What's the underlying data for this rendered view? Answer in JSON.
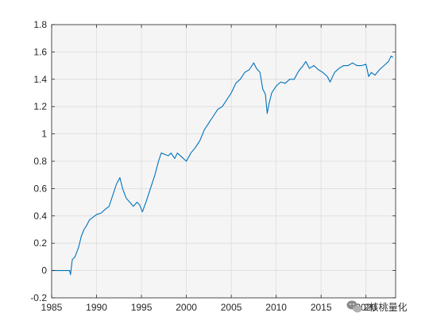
{
  "chart_data": {
    "type": "line",
    "title": "",
    "xlabel": "",
    "ylabel": "",
    "xlim": [
      1985,
      2023.3
    ],
    "ylim": [
      -0.2,
      1.8
    ],
    "x_ticks": [
      1985,
      1990,
      1995,
      2000,
      2005,
      2010,
      2015,
      2020
    ],
    "x_tick_labels": [
      "1985",
      "1990",
      "1995",
      "2000",
      "2005",
      "2010",
      "2015",
      "2020"
    ],
    "y_ticks": [
      -0.2,
      0,
      0.2,
      0.4,
      0.6,
      0.8,
      1,
      1.2,
      1.4,
      1.6,
      1.8
    ],
    "y_tick_labels": [
      "-0.2",
      "0",
      "0.2",
      "0.4",
      "0.6",
      "0.8",
      "1",
      "1.2",
      "1.4",
      "1.6",
      "1.8"
    ],
    "grid": true,
    "legend": "none",
    "colors": {
      "line": "#0072BD",
      "plot_background": "#F5F5F5",
      "grid": "#DCDCDC",
      "axes": "#262626"
    },
    "series": [
      {
        "x": [
          1985.0,
          1986.0,
          1987.0,
          1987.1,
          1987.3,
          1987.6,
          1988.0,
          1988.3,
          1988.6,
          1988.9,
          1989.2,
          1989.6,
          1990.0,
          1990.5,
          1991.0,
          1991.4,
          1991.8,
          1992.2,
          1992.6,
          1992.9,
          1993.3,
          1993.7,
          1994.1,
          1994.5,
          1994.8,
          1995.1,
          1995.5,
          1996.0,
          1996.5,
          1996.9,
          1997.2,
          1997.6,
          1998.0,
          1998.3,
          1998.7,
          1999.0,
          1999.5,
          2000.0,
          2000.5,
          2001.0,
          2001.5,
          2002.0,
          2002.5,
          2003.0,
          2003.5,
          2004.0,
          2004.5,
          2005.0,
          2005.5,
          2006.0,
          2006.5,
          2007.0,
          2007.5,
          2007.8,
          2008.2,
          2008.5,
          2008.8,
          2009.0,
          2009.2,
          2009.5,
          2010.0,
          2010.5,
          2011.0,
          2011.5,
          2012.0,
          2012.5,
          2013.0,
          2013.3,
          2013.7,
          2014.2,
          2014.7,
          2015.2,
          2015.7,
          2016.0,
          2016.5,
          2017.0,
          2017.5,
          2018.0,
          2018.5,
          2019.0,
          2019.5,
          2020.0,
          2020.3,
          2020.6,
          2021.0,
          2021.5,
          2022.0,
          2022.5,
          2022.8,
          2023.0
        ],
        "y": [
          0.0,
          0.0,
          0.0,
          -0.03,
          0.08,
          0.1,
          0.17,
          0.25,
          0.3,
          0.33,
          0.37,
          0.39,
          0.41,
          0.42,
          0.45,
          0.47,
          0.55,
          0.63,
          0.68,
          0.6,
          0.53,
          0.5,
          0.47,
          0.5,
          0.48,
          0.43,
          0.5,
          0.6,
          0.7,
          0.8,
          0.86,
          0.85,
          0.84,
          0.86,
          0.82,
          0.86,
          0.83,
          0.8,
          0.86,
          0.9,
          0.95,
          1.03,
          1.08,
          1.13,
          1.18,
          1.2,
          1.25,
          1.3,
          1.37,
          1.4,
          1.45,
          1.47,
          1.52,
          1.48,
          1.45,
          1.33,
          1.29,
          1.15,
          1.22,
          1.3,
          1.35,
          1.38,
          1.37,
          1.4,
          1.4,
          1.46,
          1.5,
          1.53,
          1.48,
          1.5,
          1.47,
          1.45,
          1.42,
          1.38,
          1.45,
          1.48,
          1.5,
          1.5,
          1.52,
          1.5,
          1.5,
          1.51,
          1.42,
          1.45,
          1.43,
          1.47,
          1.5,
          1.53,
          1.57,
          1.56
        ]
      }
    ]
  },
  "watermark": {
    "text": "2核桃量化",
    "icon": "wechat-logo-icon"
  }
}
